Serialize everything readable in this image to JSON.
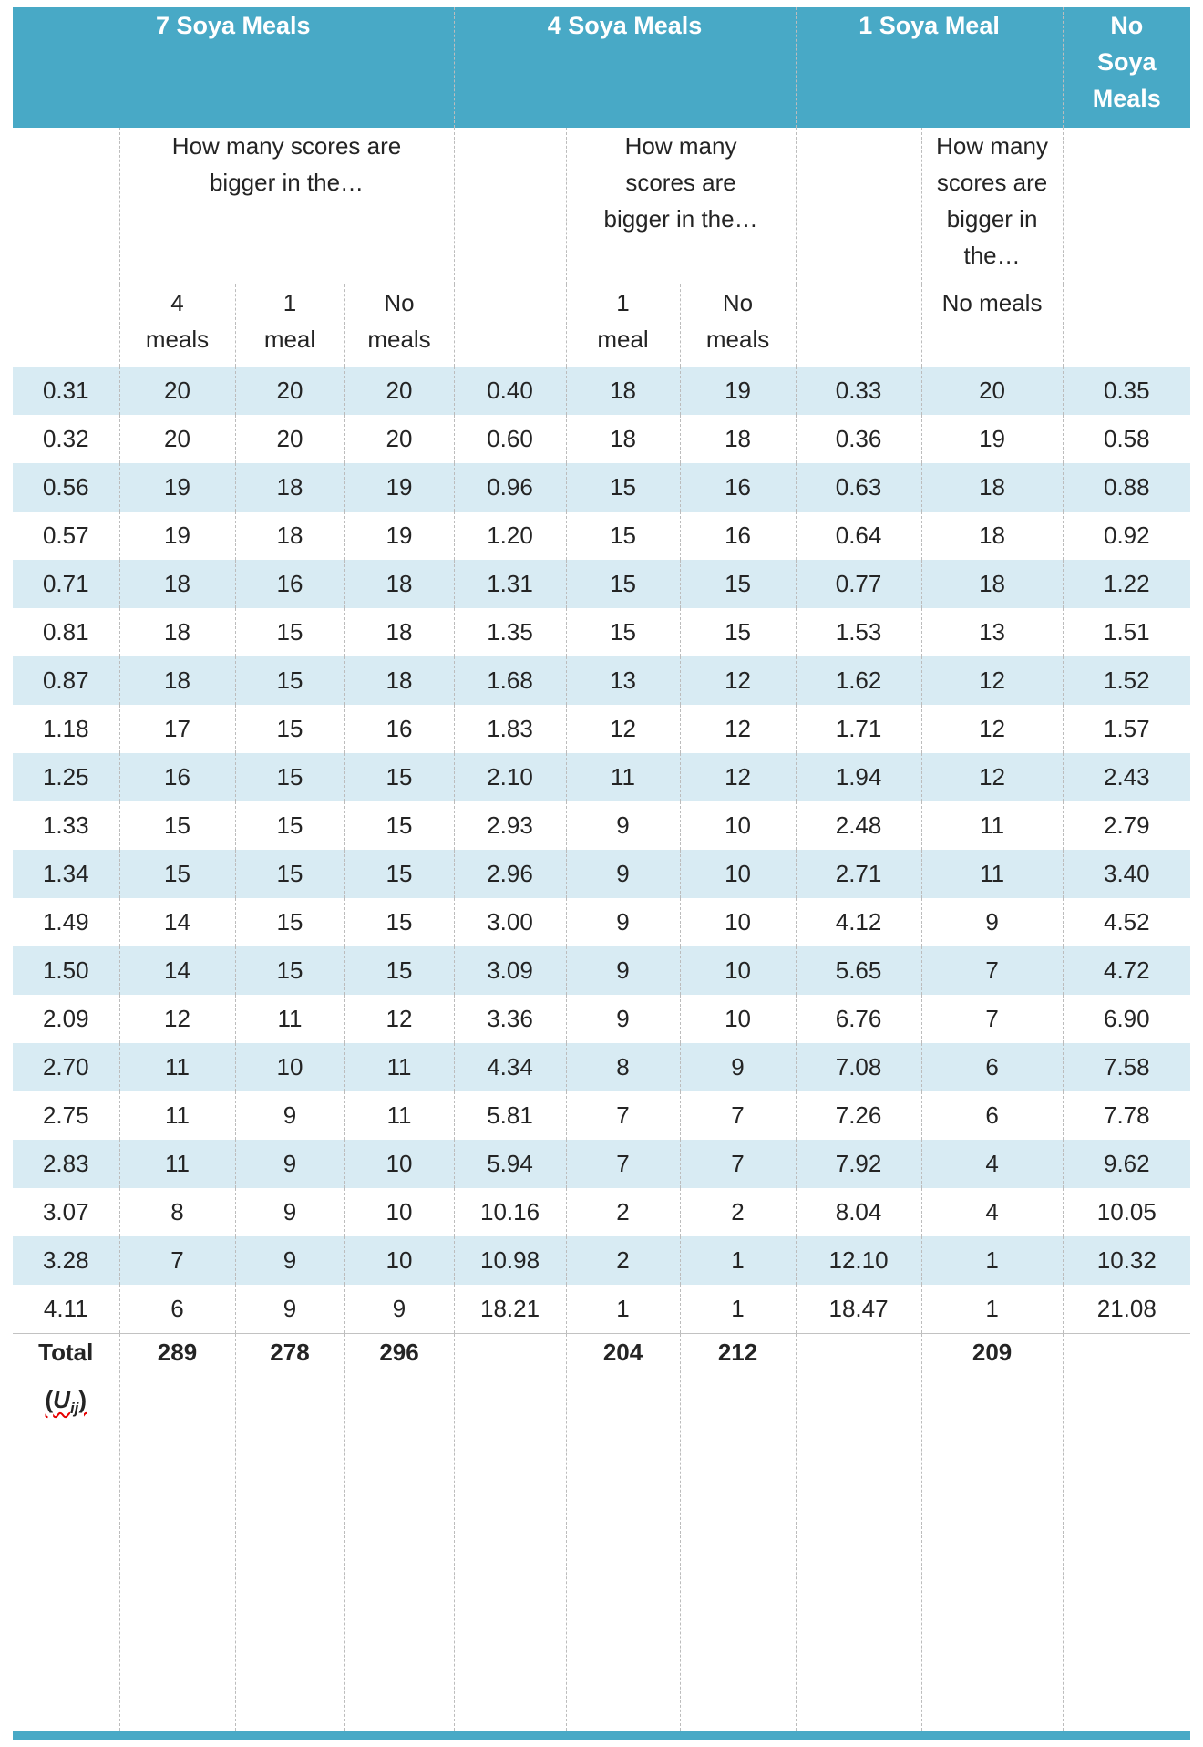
{
  "colors": {
    "header_teal": "#48a9c6",
    "stripe_blue": "#d8ebf3",
    "squiggle_red": "#e60000"
  },
  "table": {
    "group_headers": [
      "7 Soya Meals",
      "4 Soya Meals",
      "1 Soya Meal",
      "No\nSoya\nMeals"
    ],
    "questions": [
      "How many scores are\nbigger in the…",
      "How many\nscores are\nbigger in the…",
      "How many\nscores are\nbigger in\nthe…"
    ],
    "sub_headers": [
      "4\nmeals",
      "1\nmeal",
      "No\nmeals",
      "1\nmeal",
      "No\nmeals",
      "No meals"
    ],
    "rows": [
      [
        "0.31",
        "20",
        "20",
        "20",
        "0.40",
        "18",
        "19",
        "0.33",
        "20",
        "0.35"
      ],
      [
        "0.32",
        "20",
        "20",
        "20",
        "0.60",
        "18",
        "18",
        "0.36",
        "19",
        "0.58"
      ],
      [
        "0.56",
        "19",
        "18",
        "19",
        "0.96",
        "15",
        "16",
        "0.63",
        "18",
        "0.88"
      ],
      [
        "0.57",
        "19",
        "18",
        "19",
        "1.20",
        "15",
        "16",
        "0.64",
        "18",
        "0.92"
      ],
      [
        "0.71",
        "18",
        "16",
        "18",
        "1.31",
        "15",
        "15",
        "0.77",
        "18",
        "1.22"
      ],
      [
        "0.81",
        "18",
        "15",
        "18",
        "1.35",
        "15",
        "15",
        "1.53",
        "13",
        "1.51"
      ],
      [
        "0.87",
        "18",
        "15",
        "18",
        "1.68",
        "13",
        "12",
        "1.62",
        "12",
        "1.52"
      ],
      [
        "1.18",
        "17",
        "15",
        "16",
        "1.83",
        "12",
        "12",
        "1.71",
        "12",
        "1.57"
      ],
      [
        "1.25",
        "16",
        "15",
        "15",
        "2.10",
        "11",
        "12",
        "1.94",
        "12",
        "2.43"
      ],
      [
        "1.33",
        "15",
        "15",
        "15",
        "2.93",
        "9",
        "10",
        "2.48",
        "11",
        "2.79"
      ],
      [
        "1.34",
        "15",
        "15",
        "15",
        "2.96",
        "9",
        "10",
        "2.71",
        "11",
        "3.40"
      ],
      [
        "1.49",
        "14",
        "15",
        "15",
        "3.00",
        "9",
        "10",
        "4.12",
        "9",
        "4.52"
      ],
      [
        "1.50",
        "14",
        "15",
        "15",
        "3.09",
        "9",
        "10",
        "5.65",
        "7",
        "4.72"
      ],
      [
        "2.09",
        "12",
        "11",
        "12",
        "3.36",
        "9",
        "10",
        "6.76",
        "7",
        "6.90"
      ],
      [
        "2.70",
        "11",
        "10",
        "11",
        "4.34",
        "8",
        "9",
        "7.08",
        "6",
        "7.58"
      ],
      [
        "2.75",
        "11",
        "9",
        "11",
        "5.81",
        "7",
        "7",
        "7.26",
        "6",
        "7.78"
      ],
      [
        "2.83",
        "11",
        "9",
        "10",
        "5.94",
        "7",
        "7",
        "7.92",
        "4",
        "9.62"
      ],
      [
        "3.07",
        "8",
        "9",
        "10",
        "10.16",
        "2",
        "2",
        "8.04",
        "4",
        "10.05"
      ],
      [
        "3.28",
        "7",
        "9",
        "10",
        "10.98",
        "2",
        "1",
        "12.10",
        "1",
        "10.32"
      ],
      [
        "4.11",
        "6",
        "9",
        "9",
        "18.21",
        "1",
        "1",
        "18.47",
        "1",
        "21.08"
      ]
    ],
    "total_row": {
      "label": "Total",
      "uij_open": "(",
      "uij_symbol": "U",
      "uij_subscript": "ij",
      "uij_close": ")",
      "values": [
        "289",
        "278",
        "296",
        "",
        "204",
        "212",
        "",
        "209",
        ""
      ]
    }
  }
}
